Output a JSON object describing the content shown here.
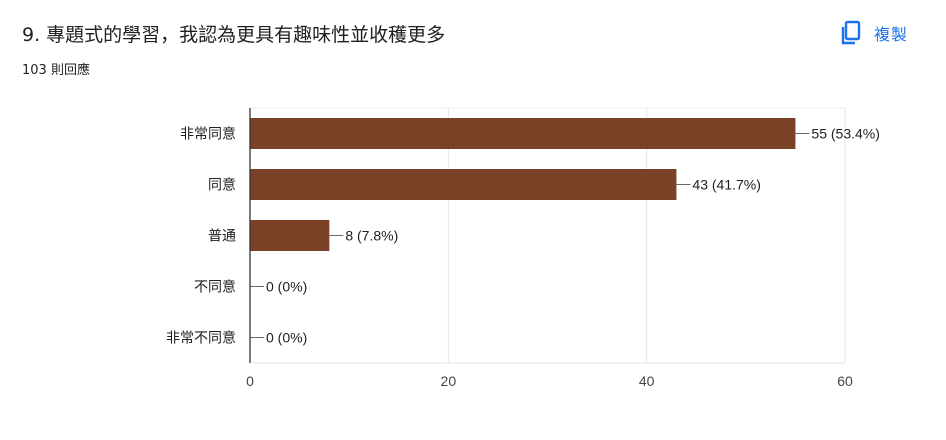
{
  "question": {
    "title": "9. 專題式的學習，我認為更具有趣味性並收穫更多",
    "response_count": "103 則回應"
  },
  "copy_button": {
    "label": "複製",
    "icon": "copy-icon",
    "color": "#1a73e8"
  },
  "chart_data": {
    "type": "bar",
    "orientation": "horizontal",
    "categories": [
      "非常同意",
      "同意",
      "普通",
      "不同意",
      "非常不同意"
    ],
    "values": [
      55,
      43,
      8,
      0,
      0
    ],
    "data_labels": [
      "55 (53.4%)",
      "43 (41.7%)",
      "8 (7.8%)",
      "0 (0%)",
      "0 (0%)"
    ],
    "xlim": [
      0,
      60
    ],
    "xticks": [
      0,
      20,
      40,
      60
    ],
    "grid": true,
    "bar_color": "#7b4127",
    "title": "",
    "xlabel": "",
    "ylabel": ""
  }
}
